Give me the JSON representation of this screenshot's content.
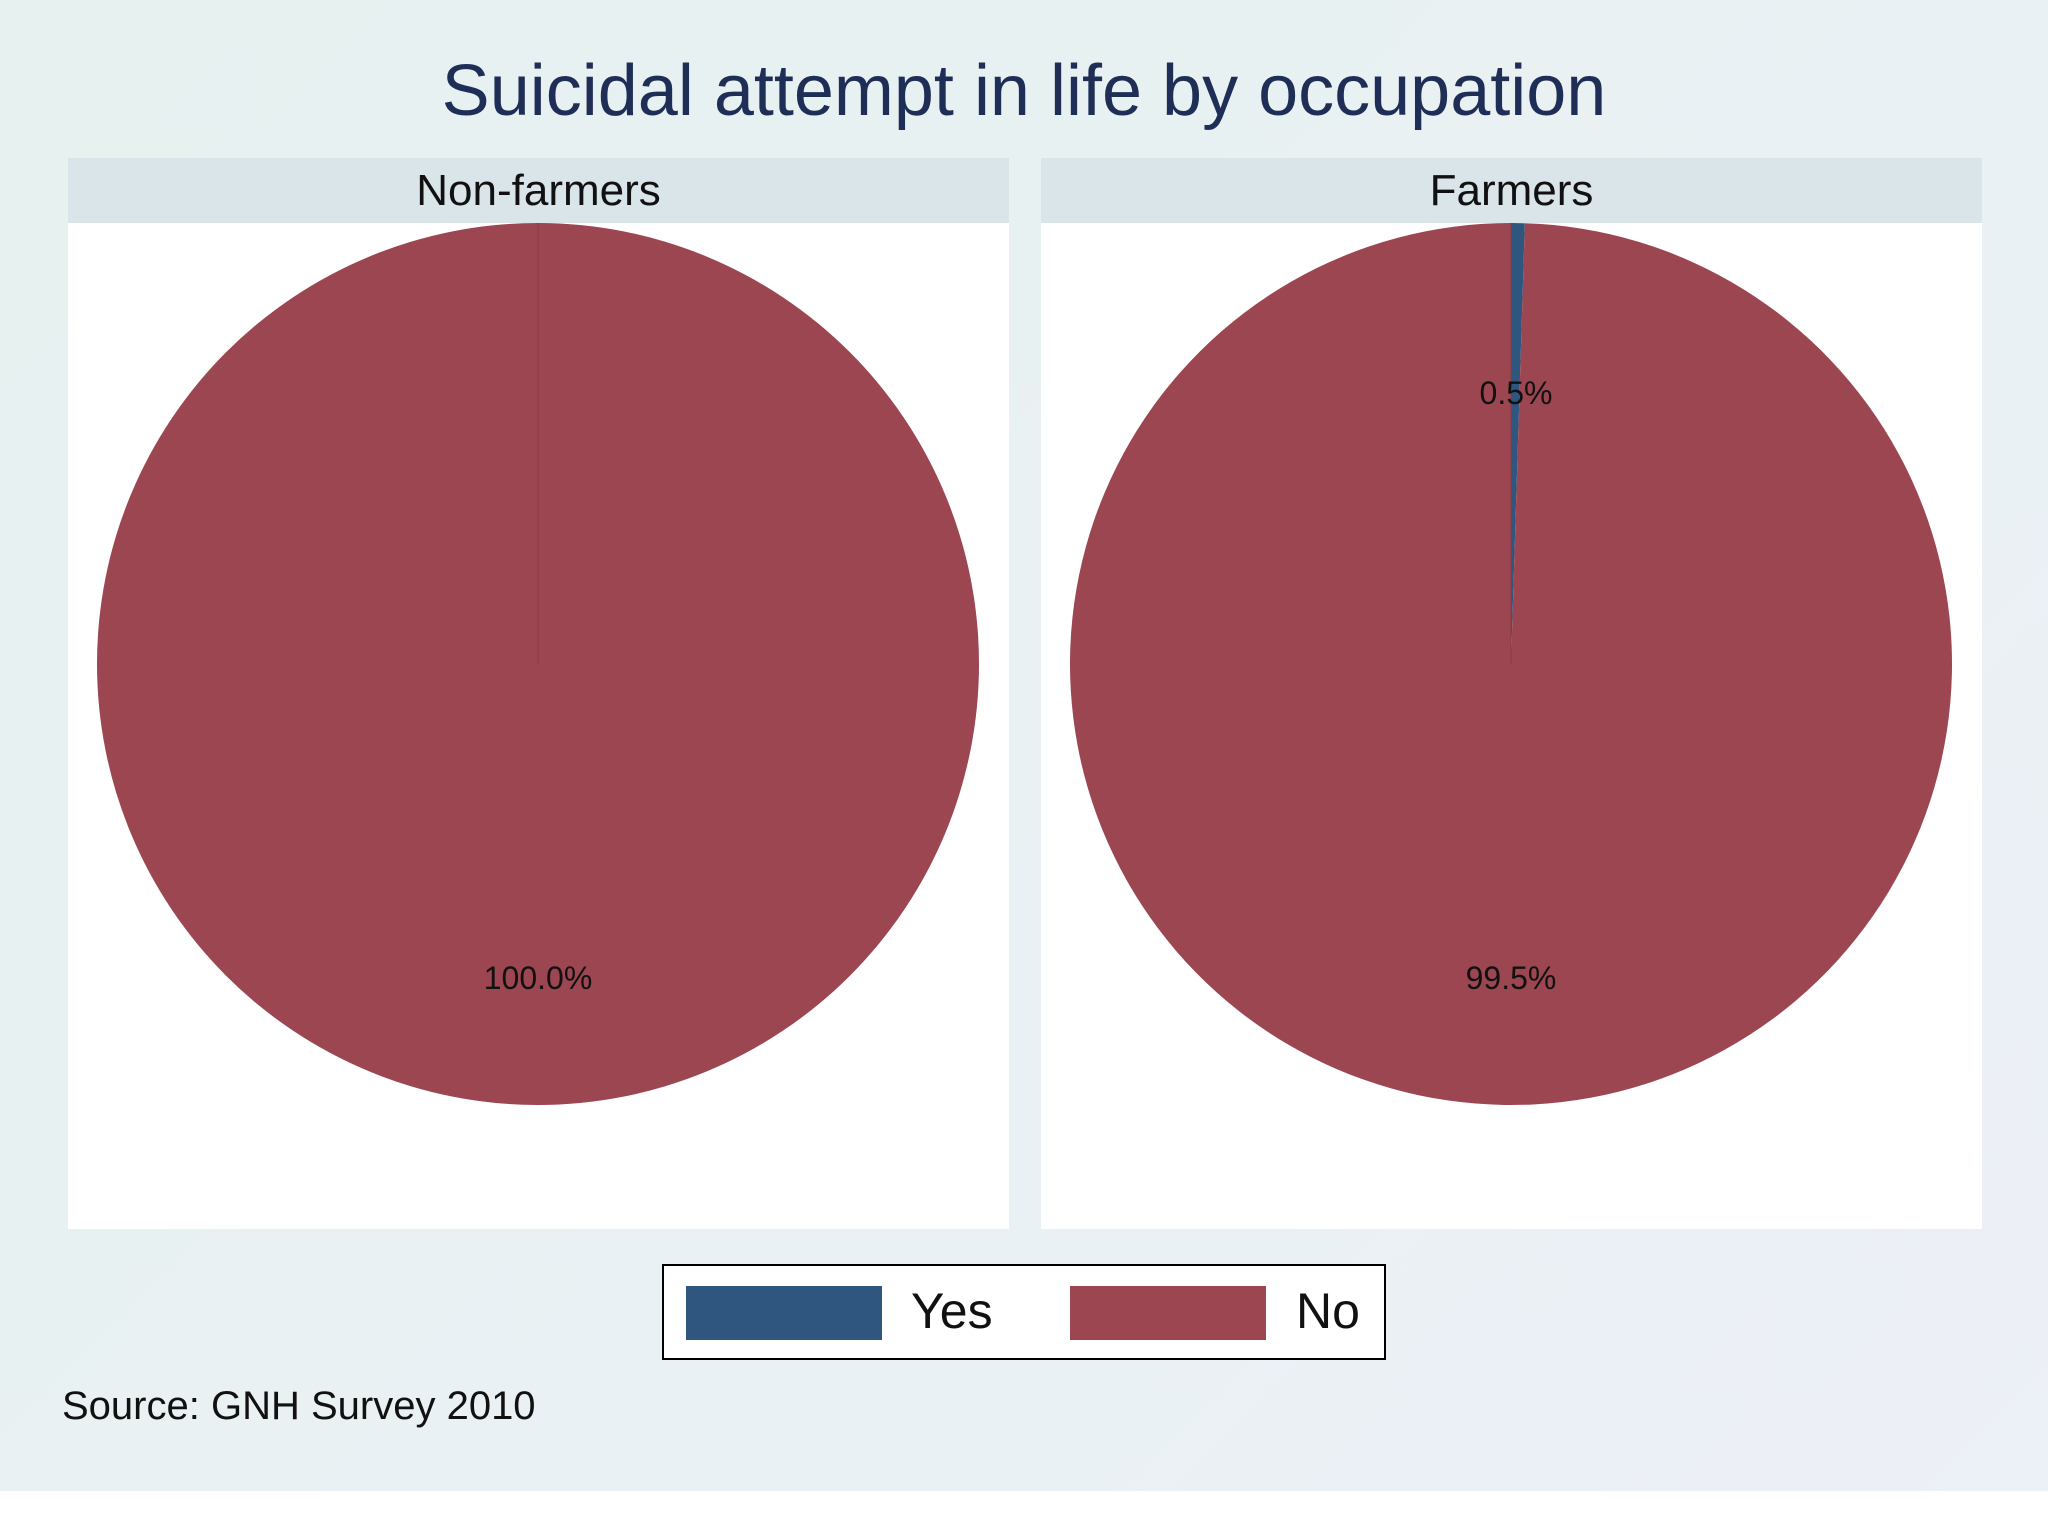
{
  "chart_data": {
    "type": "pie",
    "title": "Suicidal attempt in life by occupation",
    "categories": [
      "Yes",
      "No"
    ],
    "colors": {
      "Yes": "#2e567e",
      "No": "#9c4651"
    },
    "panels": [
      {
        "name": "Non-farmers",
        "values": [
          0.0,
          100.0
        ],
        "labels": [
          "",
          "100.0%"
        ]
      },
      {
        "name": "Farmers",
        "values": [
          0.5,
          99.5
        ],
        "labels": [
          "0.5%",
          "99.5%"
        ]
      }
    ],
    "legend": {
      "position": "bottom",
      "items": [
        "Yes",
        "No"
      ]
    },
    "note": "Source: GNH Survey 2010"
  }
}
